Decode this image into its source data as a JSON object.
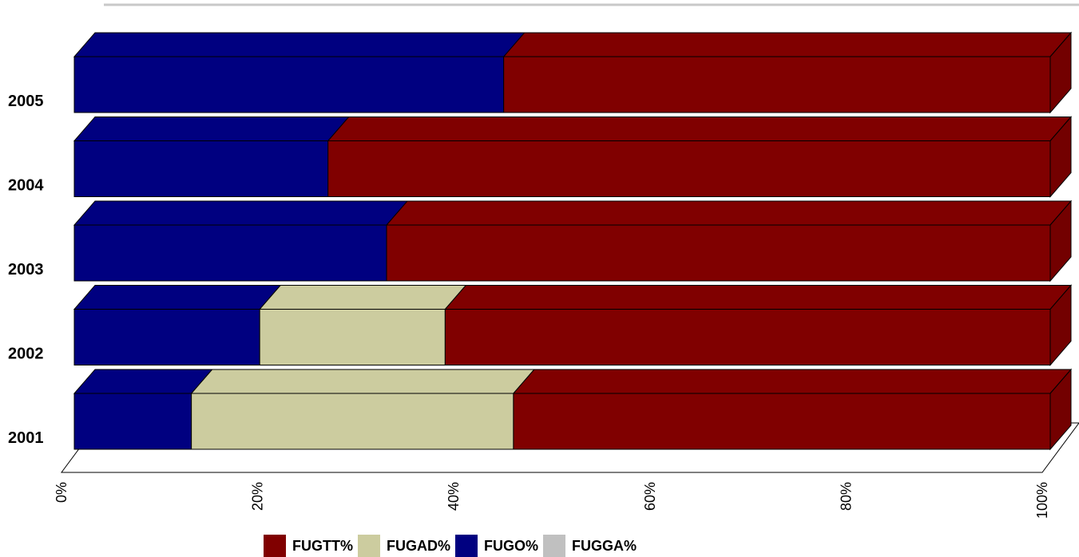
{
  "chart_data": {
    "type": "bar",
    "orientation": "horizontal",
    "stacked": "percent",
    "style": "3d",
    "categories": [
      "2001",
      "2002",
      "2003",
      "2004",
      "2005"
    ],
    "series": [
      {
        "name": "FUGO%",
        "color": "#000080",
        "values": [
          12,
          19,
          32,
          26,
          44
        ]
      },
      {
        "name": "FUGAD%",
        "color": "#CCCC9F",
        "values": [
          33,
          19,
          0,
          0,
          0
        ]
      },
      {
        "name": "FUGGA%",
        "color": "#C0C0C0",
        "values": [
          0,
          0,
          0,
          0,
          0
        ]
      },
      {
        "name": "FUGTT%",
        "color": "#800000",
        "values": [
          55,
          62,
          68,
          74,
          56
        ]
      }
    ],
    "x_ticks": [
      "0%",
      "20%",
      "40%",
      "60%",
      "80%",
      "100%"
    ],
    "xlim": [
      0,
      100
    ],
    "legend": {
      "position": "bottom",
      "order": [
        "FUGTT%",
        "FUGAD%",
        "FUGO%",
        "FUGGA%"
      ]
    },
    "grid": false
  }
}
